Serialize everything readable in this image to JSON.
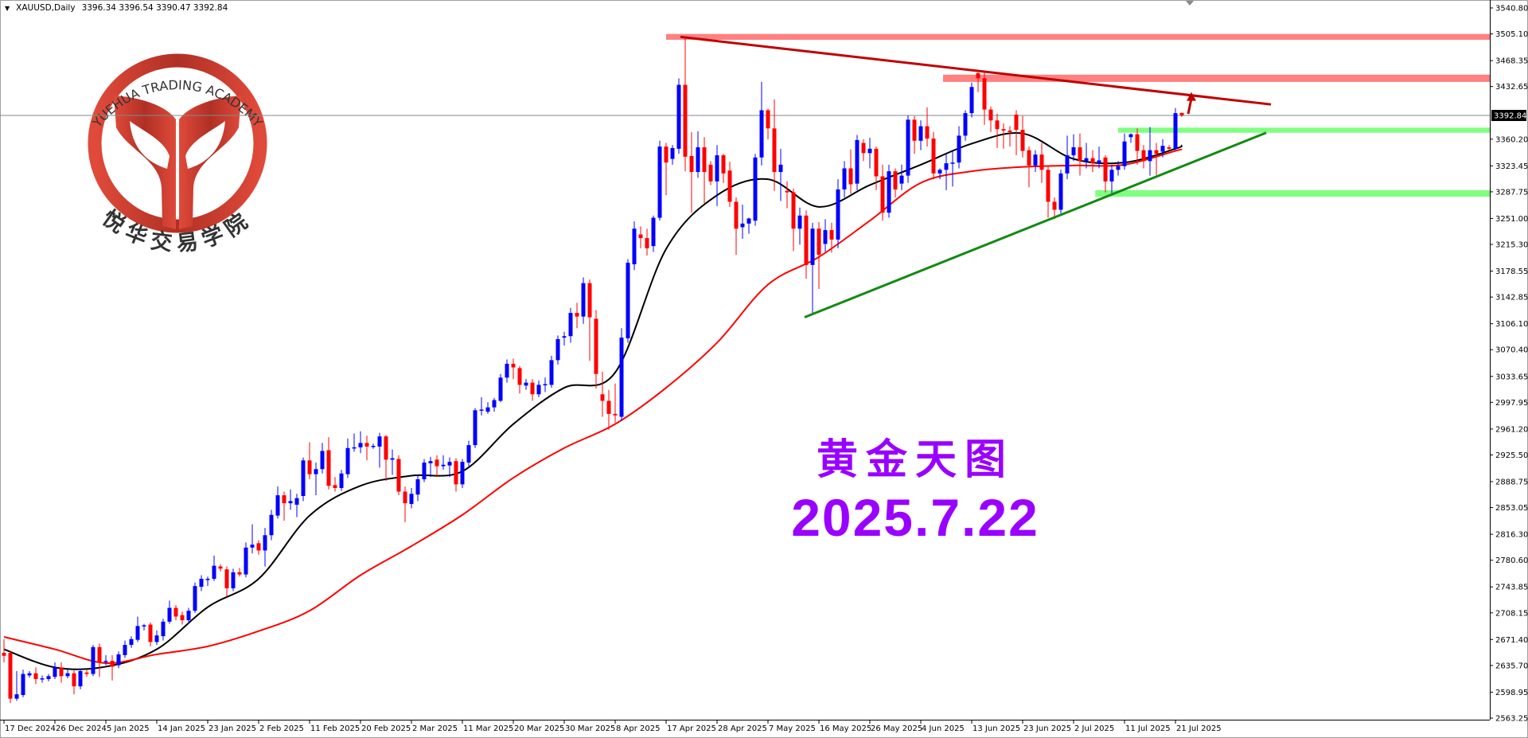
{
  "header": {
    "symbol_timeframe": "XAUUSD,Daily",
    "ohlc_text": "3396.34 3396.54 3390.47 3392.84"
  },
  "overlay": {
    "title": "黄金天图",
    "date": "2025.7.22"
  },
  "logo": {
    "english": "YUEHUA TRADING ACADEMY",
    "chinese": "悦华交易学院",
    "color": "#b03025"
  },
  "colors": {
    "bull_candle": "#0000ff",
    "bear_candle": "#ff0000",
    "ma_fast": "#000000",
    "ma_slow": "#ff0000",
    "resistance_zone": "#ff8080",
    "support_zone": "#80ff80",
    "resistance_trendline": "#c00000",
    "support_trendline": "#138a13",
    "text_overlay": "#9900ff",
    "current_price_line": "#808890"
  },
  "chart_data": {
    "type": "candlestick",
    "symbol": "XAUUSD",
    "timeframe": "Daily",
    "ylim": [
      2563.25,
      3540.8
    ],
    "grid": false,
    "current_price": 3392.84,
    "price_axis_labels": [
      "3540.80",
      "3505.10",
      "3468.35",
      "3432.65",
      "3360.20",
      "3323.45",
      "3287.75",
      "3251.00",
      "3215.30",
      "3178.55",
      "3142.85",
      "3106.10",
      "3070.40",
      "3033.65",
      "2997.95",
      "2961.20",
      "2925.50",
      "2888.75",
      "2853.05",
      "2816.30",
      "2780.60",
      "2743.85",
      "2708.15",
      "2671.40",
      "2635.70",
      "2598.95",
      "2563.25"
    ],
    "time_axis_labels": [
      "17 Dec 2024",
      "26 Dec 2024",
      "5 Jan 2025",
      "14 Jan 2025",
      "23 Jan 2025",
      "2 Feb 2025",
      "11 Feb 2025",
      "20 Feb 2025",
      "2 Mar 2025",
      "11 Mar 2025",
      "20 Mar 2025",
      "30 Mar 2025",
      "8 Apr 2025",
      "17 Apr 2025",
      "28 Apr 2025",
      "7 May 2025",
      "16 May 2025",
      "26 May 2025",
      "4 Jun 2025",
      "13 Jun 2025",
      "23 Jun 2025",
      "2 Jul 2025",
      "11 Jul 2025",
      "21 Jul 2025"
    ],
    "bars_per_time_label": 8,
    "ohlc": [
      [
        2653,
        2672,
        2640,
        2649
      ],
      [
        2653,
        2656,
        2584,
        2590
      ],
      [
        2590,
        2628,
        2587,
        2596
      ],
      [
        2595,
        2630,
        2592,
        2624
      ],
      [
        2622,
        2628,
        2619,
        2625
      ],
      [
        2625,
        2633,
        2610,
        2617
      ],
      [
        2617,
        2622,
        2612,
        2618
      ],
      [
        2617,
        2624,
        2614,
        2621
      ],
      [
        2620,
        2640,
        2617,
        2633
      ],
      [
        2633,
        2640,
        2612,
        2621
      ],
      [
        2621,
        2630,
        2618,
        2625
      ],
      [
        2625,
        2629,
        2596,
        2607
      ],
      [
        2607,
        2631,
        2603,
        2628
      ],
      [
        2626,
        2630,
        2620,
        2624
      ],
      [
        2624,
        2664,
        2621,
        2661
      ],
      [
        2661,
        2666,
        2620,
        2640
      ],
      [
        2642,
        2650,
        2636,
        2642
      ],
      [
        2642,
        2650,
        2615,
        2634
      ],
      [
        2636,
        2655,
        2632,
        2651
      ],
      [
        2650,
        2670,
        2646,
        2664
      ],
      [
        2664,
        2676,
        2660,
        2672
      ],
      [
        2671,
        2703,
        2668,
        2690
      ],
      [
        2690,
        2693,
        2684,
        2691
      ],
      [
        2692,
        2695,
        2662,
        2668
      ],
      [
        2668,
        2684,
        2664,
        2677
      ],
      [
        2676,
        2700,
        2670,
        2696
      ],
      [
        2696,
        2725,
        2693,
        2715
      ],
      [
        2715,
        2719,
        2698,
        2703
      ],
      [
        2705,
        2710,
        2692,
        2698
      ],
      [
        2698,
        2715,
        2693,
        2711
      ],
      [
        2711,
        2750,
        2708,
        2745
      ],
      [
        2744,
        2760,
        2738,
        2755
      ],
      [
        2755,
        2758,
        2745,
        2755
      ],
      [
        2755,
        2787,
        2752,
        2773
      ],
      [
        2772,
        2775,
        2765,
        2769
      ],
      [
        2768,
        2772,
        2730,
        2742
      ],
      [
        2742,
        2769,
        2738,
        2764
      ],
      [
        2764,
        2770,
        2758,
        2761
      ],
      [
        2761,
        2805,
        2757,
        2798
      ],
      [
        2798,
        2830,
        2790,
        2802
      ],
      [
        2804,
        2808,
        2788,
        2794
      ],
      [
        2794,
        2825,
        2772,
        2815
      ],
      [
        2815,
        2850,
        2808,
        2843
      ],
      [
        2842,
        2882,
        2838,
        2870
      ],
      [
        2870,
        2875,
        2835,
        2859
      ],
      [
        2859,
        2878,
        2850,
        2862
      ],
      [
        2857,
        2872,
        2840,
        2866
      ],
      [
        2869,
        2922,
        2862,
        2918
      ],
      [
        2918,
        2943,
        2892,
        2899
      ],
      [
        2899,
        2915,
        2870,
        2906
      ],
      [
        2906,
        2942,
        2900,
        2931
      ],
      [
        2932,
        2950,
        2878,
        2883
      ],
      [
        2884,
        2895,
        2875,
        2880
      ],
      [
        2880,
        2905,
        2876,
        2900
      ],
      [
        2899,
        2948,
        2894,
        2935
      ],
      [
        2935,
        2955,
        2930,
        2936
      ],
      [
        2936,
        2958,
        2928,
        2942
      ],
      [
        2942,
        2952,
        2918,
        2937
      ],
      [
        2937,
        2941,
        2934,
        2938
      ],
      [
        2937,
        2956,
        2908,
        2951
      ],
      [
        2951,
        2953,
        2890,
        2919
      ],
      [
        2919,
        2933,
        2898,
        2921
      ],
      [
        2920,
        2925,
        2870,
        2875
      ],
      [
        2875,
        2882,
        2833,
        2859
      ],
      [
        2858,
        2880,
        2852,
        2872
      ],
      [
        2871,
        2898,
        2862,
        2892
      ],
      [
        2892,
        2920,
        2888,
        2915
      ],
      [
        2914,
        2923,
        2895,
        2917
      ],
      [
        2919,
        2925,
        2895,
        2910
      ],
      [
        2910,
        2925,
        2905,
        2912
      ],
      [
        2911,
        2922,
        2895,
        2916
      ],
      [
        2917,
        2921,
        2875,
        2885
      ],
      [
        2885,
        2920,
        2880,
        2916
      ],
      [
        2915,
        2945,
        2910,
        2939
      ],
      [
        2939,
        2990,
        2935,
        2987
      ],
      [
        2987,
        3005,
        2980,
        2988
      ],
      [
        2985,
        2998,
        2982,
        2991
      ],
      [
        2991,
        3004,
        2985,
        3001
      ],
      [
        3000,
        3037,
        2998,
        3032
      ],
      [
        3032,
        3057,
        3025,
        3051
      ],
      [
        3051,
        3058,
        3030,
        3046
      ],
      [
        3045,
        3048,
        3010,
        3022
      ],
      [
        3021,
        3030,
        3015,
        3025
      ],
      [
        3025,
        3030,
        3000,
        3009
      ],
      [
        3009,
        3028,
        3005,
        3022
      ],
      [
        3022,
        3032,
        3012,
        3023
      ],
      [
        3022,
        3062,
        3018,
        3056
      ],
      [
        3056,
        3090,
        3050,
        3085
      ],
      [
        3087,
        3095,
        3076,
        3089
      ],
      [
        3089,
        3128,
        3080,
        3121
      ],
      [
        3121,
        3135,
        3100,
        3116
      ],
      [
        3116,
        3170,
        3106,
        3162
      ],
      [
        3162,
        3167,
        3055,
        3115
      ],
      [
        3113,
        3125,
        3017,
        3037
      ],
      [
        3009,
        3040,
        2978,
        3000
      ],
      [
        3000,
        3015,
        2960,
        2982
      ],
      [
        2982,
        3024,
        2970,
        2980
      ],
      [
        2978,
        3100,
        2972,
        3087
      ],
      [
        3086,
        3195,
        3080,
        3190
      ],
      [
        3188,
        3247,
        3180,
        3237
      ],
      [
        3229,
        3240,
        3210,
        3224
      ],
      [
        3224,
        3237,
        3200,
        3210
      ],
      [
        3213,
        3255,
        3205,
        3252
      ],
      [
        3252,
        3358,
        3248,
        3350
      ],
      [
        3350,
        3355,
        3283,
        3328
      ],
      [
        3333,
        3352,
        3325,
        3348
      ],
      [
        3347,
        3444,
        3340,
        3435
      ],
      [
        3435,
        3500,
        3316,
        3336
      ],
      [
        3337,
        3370,
        3259,
        3315
      ],
      [
        3315,
        3371,
        3307,
        3349
      ],
      [
        3349,
        3363,
        3272,
        3315
      ],
      [
        3325,
        3330,
        3297,
        3302
      ],
      [
        3302,
        3352,
        3268,
        3338
      ],
      [
        3338,
        3340,
        3300,
        3313
      ],
      [
        3317,
        3329,
        3267,
        3274
      ],
      [
        3274,
        3280,
        3201,
        3237
      ],
      [
        3239,
        3270,
        3223,
        3244
      ],
      [
        3244,
        3252,
        3230,
        3251
      ],
      [
        3248,
        3340,
        3241,
        3335
      ],
      [
        3335,
        3439,
        3324,
        3400
      ],
      [
        3400,
        3402,
        3360,
        3375
      ],
      [
        3375,
        3415,
        3289,
        3315
      ],
      [
        3315,
        3347,
        3275,
        3325
      ],
      [
        3289,
        3302,
        3265,
        3287
      ],
      [
        3287,
        3292,
        3206,
        3237
      ],
      [
        3237,
        3266,
        3215,
        3255
      ],
      [
        3255,
        3262,
        3168,
        3187
      ],
      [
        3187,
        3245,
        3121,
        3237
      ],
      [
        3237,
        3246,
        3154,
        3201
      ],
      [
        3216,
        3250,
        3205,
        3235
      ],
      [
        3235,
        3245,
        3204,
        3222
      ],
      [
        3222,
        3305,
        3210,
        3291
      ],
      [
        3291,
        3330,
        3280,
        3320
      ],
      [
        3320,
        3346,
        3285,
        3298
      ],
      [
        3299,
        3366,
        3290,
        3359
      ],
      [
        3355,
        3360,
        3330,
        3341
      ],
      [
        3341,
        3362,
        3320,
        3347
      ],
      [
        3347,
        3350,
        3290,
        3309
      ],
      [
        3309,
        3325,
        3248,
        3259
      ],
      [
        3259,
        3325,
        3252,
        3316
      ],
      [
        3316,
        3320,
        3280,
        3291
      ],
      [
        3299,
        3325,
        3290,
        3310
      ],
      [
        3310,
        3393,
        3300,
        3387
      ],
      [
        3387,
        3392,
        3340,
        3358
      ],
      [
        3358,
        3386,
        3345,
        3378
      ],
      [
        3378,
        3404,
        3350,
        3361
      ],
      [
        3361,
        3370,
        3305,
        3313
      ],
      [
        3313,
        3320,
        3305,
        3318
      ],
      [
        3318,
        3340,
        3290,
        3327
      ],
      [
        3327,
        3344,
        3295,
        3328
      ],
      [
        3328,
        3378,
        3320,
        3365
      ],
      [
        3365,
        3400,
        3358,
        3396
      ],
      [
        3396,
        3438,
        3390,
        3432
      ],
      [
        3451,
        3452,
        3425,
        3444
      ],
      [
        3444,
        3452,
        3380,
        3401
      ],
      [
        3401,
        3405,
        3370,
        3386
      ],
      [
        3386,
        3395,
        3348,
        3374
      ],
      [
        3374,
        3382,
        3347,
        3372
      ],
      [
        3372,
        3378,
        3350,
        3370
      ],
      [
        3394,
        3400,
        3338,
        3373
      ],
      [
        3373,
        3392,
        3335,
        3344
      ],
      [
        3345,
        3350,
        3294,
        3324
      ],
      [
        3324,
        3345,
        3315,
        3339
      ],
      [
        3339,
        3355,
        3300,
        3318
      ],
      [
        3318,
        3322,
        3252,
        3274
      ],
      [
        3274,
        3280,
        3250,
        3263
      ],
      [
        3263,
        3318,
        3258,
        3313
      ],
      [
        3313,
        3365,
        3305,
        3338
      ],
      [
        3338,
        3367,
        3330,
        3349
      ],
      [
        3349,
        3368,
        3310,
        3330
      ],
      [
        3330,
        3355,
        3320,
        3334
      ],
      [
        3334,
        3345,
        3315,
        3327
      ],
      [
        3327,
        3350,
        3320,
        3331
      ],
      [
        3335,
        3338,
        3287,
        3302
      ],
      [
        3302,
        3325,
        3286,
        3318
      ],
      [
        3318,
        3330,
        3310,
        3323
      ],
      [
        3323,
        3368,
        3318,
        3357
      ],
      [
        3363,
        3368,
        3355,
        3367
      ],
      [
        3367,
        3375,
        3325,
        3344
      ],
      [
        3345,
        3352,
        3320,
        3330
      ],
      [
        3330,
        3377,
        3310,
        3345
      ],
      [
        3345,
        3355,
        3311,
        3340
      ],
      [
        3343,
        3360,
        3335,
        3351
      ],
      [
        3349,
        3352,
        3345,
        3347
      ],
      [
        3347,
        3403,
        3345,
        3396
      ],
      [
        3396.34,
        3396.54,
        3390.47,
        3392.84
      ]
    ],
    "moving_averages": [
      {
        "role": "fast",
        "color": "#000000",
        "bars": [
          0,
          8,
          16,
          24,
          32,
          40,
          48,
          56,
          64,
          72,
          80,
          88,
          96,
          104,
          112,
          120,
          128,
          136,
          144,
          152,
          160,
          168,
          176,
          184,
          185
        ],
        "values": [
          2658,
          2633,
          2634,
          2658,
          2716,
          2755,
          2842,
          2883,
          2897,
          2903,
          2968,
          3018,
          3039,
          3209,
          3283,
          3305,
          3267,
          3297,
          3325,
          3354,
          3368,
          3333,
          3328,
          3347,
          3352
        ]
      },
      {
        "role": "slow",
        "color": "#ff0000",
        "bars": [
          0,
          8,
          16,
          24,
          32,
          40,
          48,
          56,
          64,
          72,
          80,
          88,
          96,
          104,
          112,
          120,
          128,
          136,
          144,
          152,
          160,
          168,
          176,
          184,
          185
        ],
        "values": [
          2675,
          2658,
          2639,
          2651,
          2662,
          2683,
          2711,
          2760,
          2800,
          2843,
          2894,
          2935,
          2968,
          3018,
          3080,
          3160,
          3198,
          3248,
          3300,
          3316,
          3322,
          3324,
          3325,
          3344,
          3346
        ]
      }
    ],
    "zones": [
      {
        "kind": "resistance",
        "from_bar": 104,
        "low": 3497,
        "high": 3505,
        "color": "#ff8080"
      },
      {
        "kind": "resistance",
        "from_bar": 147.5,
        "low": 3439,
        "high": 3449,
        "color": "#ff8080"
      },
      {
        "kind": "support",
        "from_bar": 175,
        "low": 3369,
        "high": 3376,
        "color": "#80ff80"
      },
      {
        "kind": "support",
        "from_bar": 171.4,
        "low": 3281,
        "high": 3290,
        "color": "#80ff80"
      }
    ],
    "trendlines": [
      {
        "kind": "resistance",
        "from": [
          106.25,
          3501
        ],
        "to": [
          199,
          3408
        ],
        "color": "#c00000"
      },
      {
        "kind": "support",
        "from": [
          125.75,
          3115
        ],
        "to": [
          198.25,
          3369
        ],
        "color": "#138a13"
      }
    ],
    "arrow": {
      "from": [
        186,
        3395
      ],
      "to": [
        186.5,
        3425
      ],
      "color": "#c00000"
    }
  }
}
